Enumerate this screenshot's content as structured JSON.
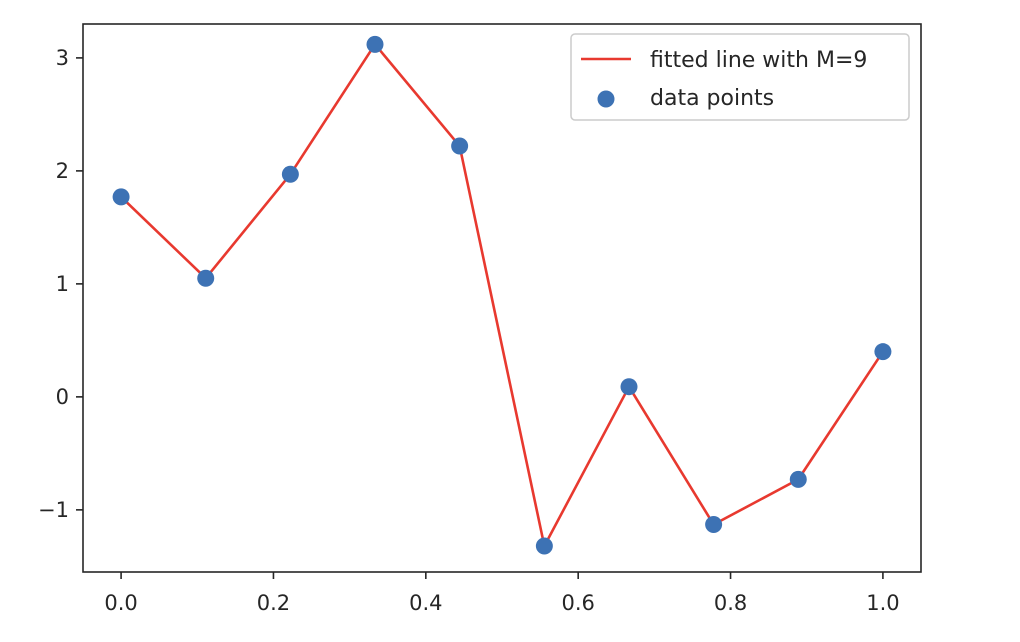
{
  "chart_data": {
    "type": "line",
    "title": "",
    "xlabel": "",
    "ylabel": "",
    "xlim": [
      -0.05,
      1.05
    ],
    "ylim": [
      -1.55,
      3.3
    ],
    "xticks": [
      0.0,
      0.2,
      0.4,
      0.6,
      0.8,
      1.0
    ],
    "xtick_labels": [
      "0.0",
      "0.2",
      "0.4",
      "0.6",
      "0.8",
      "1.0"
    ],
    "yticks": [
      -1,
      0,
      1,
      2,
      3
    ],
    "ytick_labels": [
      "−1",
      "0",
      "1",
      "2",
      "3"
    ],
    "grid": false,
    "legend_position": "top-right",
    "series": [
      {
        "name": "fitted line with M=9",
        "kind": "line",
        "color": "#e8392f",
        "x": [
          0.0,
          0.1111,
          0.2222,
          0.3333,
          0.4444,
          0.5556,
          0.6667,
          0.7778,
          0.8889,
          1.0
        ],
        "y": [
          1.77,
          1.05,
          1.97,
          3.12,
          2.22,
          -1.32,
          0.09,
          -1.13,
          -0.73,
          0.4
        ]
      },
      {
        "name": "data points",
        "kind": "scatter",
        "color": "#3d72b4",
        "x": [
          0.0,
          0.1111,
          0.2222,
          0.3333,
          0.4444,
          0.5556,
          0.6667,
          0.7778,
          0.8889,
          1.0
        ],
        "y": [
          1.77,
          1.05,
          1.97,
          3.12,
          2.22,
          -1.32,
          0.09,
          -1.13,
          -0.73,
          0.4
        ]
      }
    ]
  }
}
